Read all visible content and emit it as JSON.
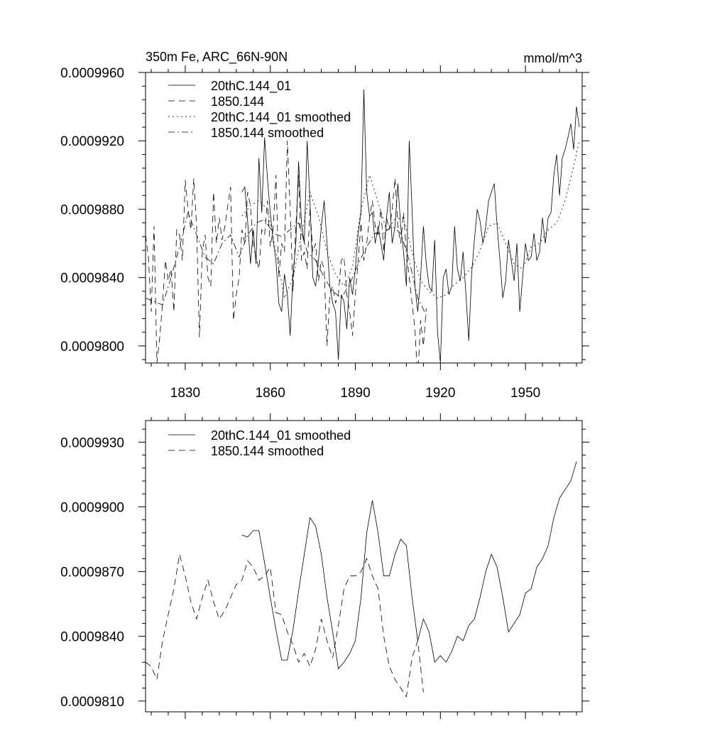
{
  "chart_data": [
    {
      "type": "line",
      "title": "350m Fe, ARC_66N-90N",
      "units_label": "mmol/m^3",
      "xlabel": "",
      "ylabel": "",
      "xlim": [
        1816,
        1970
      ],
      "ylim": [
        0.000979,
        0.000996
      ],
      "x_ticks": [
        1830,
        1860,
        1890,
        1920,
        1950
      ],
      "x_tick_labels": [
        "1830",
        "1860",
        "1890",
        "1920",
        "1950"
      ],
      "y_ticks": [
        0.00098,
        0.000984,
        0.000988,
        0.000992,
        0.000996
      ],
      "y_tick_labels": [
        "0.0009800",
        "0.0009840",
        "0.0009880",
        "0.0009920",
        "0.0009960"
      ],
      "legend_position": "top-left",
      "series": [
        {
          "name": "20thC.144_01",
          "style": "solid",
          "x": [
            1850,
            1851,
            1852,
            1853,
            1854,
            1855,
            1856,
            1857,
            1858,
            1859,
            1860,
            1861,
            1862,
            1863,
            1864,
            1865,
            1866,
            1867,
            1868,
            1869,
            1870,
            1871,
            1872,
            1873,
            1874,
            1875,
            1876,
            1877,
            1878,
            1879,
            1880,
            1881,
            1882,
            1883,
            1884,
            1885,
            1886,
            1887,
            1888,
            1889,
            1890,
            1891,
            1892,
            1893,
            1894,
            1895,
            1896,
            1897,
            1898,
            1899,
            1900,
            1901,
            1902,
            1903,
            1904,
            1905,
            1906,
            1907,
            1908,
            1909,
            1910,
            1911,
            1912,
            1913,
            1914,
            1915,
            1916,
            1917,
            1918,
            1919,
            1920,
            1921,
            1922,
            1923,
            1924,
            1925,
            1926,
            1927,
            1928,
            1929,
            1930,
            1931,
            1932,
            1933,
            1934,
            1935,
            1936,
            1937,
            1938,
            1939,
            1940,
            1941,
            1942,
            1943,
            1944,
            1945,
            1946,
            1947,
            1948,
            1949,
            1950,
            1951,
            1952,
            1953,
            1954,
            1955,
            1956,
            1957,
            1958,
            1959,
            1960,
            1961,
            1962,
            1963,
            1964,
            1965,
            1966,
            1967,
            1968,
            1969
          ],
          "values": [
            0.000989,
            0.0009893,
            0.0009873,
            0.0009848,
            0.0009868,
            0.0009848,
            0.000991,
            0.0009878,
            0.0009922,
            0.0009898,
            0.0009878,
            0.0009862,
            0.000985,
            0.0009825,
            0.000982,
            0.0009842,
            0.000983,
            0.0009806,
            0.0009842,
            0.000986,
            0.0009908,
            0.0009872,
            0.000986,
            0.000992,
            0.0009885,
            0.000984,
            0.0009835,
            0.000985,
            0.000987,
            0.0009885,
            0.000986,
            0.0009835,
            0.0009825,
            0.000982,
            0.0009792,
            0.000983,
            0.0009826,
            0.000981,
            0.000984,
            0.000983,
            0.0009845,
            0.0009866,
            0.0009878,
            0.000995,
            0.000989,
            0.0009876,
            0.0009878,
            0.000986,
            0.000987,
            0.000986,
            0.000985,
            0.0009875,
            0.000989,
            0.000986,
            0.000987,
            0.0009895,
            0.000987,
            0.0009855,
            0.0009835,
            0.000992,
            0.000988,
            0.0009835,
            0.000982,
            0.000984,
            0.000987,
            0.0009848,
            0.0009835,
            0.0009832,
            0.0009862,
            0.0009808,
            0.000979,
            0.000984,
            0.0009845,
            0.000983,
            0.0009835,
            0.000987,
            0.0009845,
            0.0009838,
            0.0009855,
            0.000983,
            0.0009803,
            0.0009842,
            0.0009862,
            0.000988,
            0.0009873,
            0.000986,
            0.000987,
            0.0009885,
            0.000989,
            0.0009895,
            0.000987,
            0.000985,
            0.0009828,
            0.0009838,
            0.0009862,
            0.000985,
            0.0009838,
            0.000986,
            0.000982,
            0.000984,
            0.000986,
            0.000985,
            0.0009852,
            0.0009866,
            0.000985,
            0.0009855,
            0.0009875,
            0.000986,
            0.0009875,
            0.0009878,
            0.00099,
            0.0009912,
            0.0009888,
            0.000991,
            0.0009915,
            0.0009922,
            0.000993,
            0.0009915,
            0.000994,
            0.0009928
          ]
        },
        {
          "name": "1850.144",
          "style": "dashed",
          "x": [
            1816,
            1817,
            1818,
            1819,
            1820,
            1821,
            1822,
            1823,
            1824,
            1825,
            1826,
            1827,
            1828,
            1829,
            1830,
            1831,
            1832,
            1833,
            1834,
            1835,
            1836,
            1837,
            1838,
            1839,
            1840,
            1841,
            1842,
            1843,
            1844,
            1845,
            1846,
            1847,
            1848,
            1849,
            1850,
            1851,
            1852,
            1853,
            1854,
            1855,
            1856,
            1857,
            1858,
            1859,
            1860,
            1861,
            1862,
            1863,
            1864,
            1865,
            1866,
            1867,
            1868,
            1869,
            1870,
            1871,
            1872,
            1873,
            1874,
            1875,
            1876,
            1877,
            1878,
            1879,
            1880,
            1881,
            1882,
            1883,
            1884,
            1885,
            1886,
            1887,
            1888,
            1889,
            1890,
            1891,
            1892,
            1893,
            1894,
            1895,
            1896,
            1897,
            1898,
            1899,
            1900,
            1901,
            1902,
            1903,
            1904,
            1905,
            1906,
            1907,
            1908,
            1909,
            1910,
            1911,
            1912,
            1913,
            1914,
            1915
          ],
          "values": [
            0.0009865,
            0.0009852,
            0.000982,
            0.000987,
            0.000979,
            0.0009805,
            0.0009825,
            0.000985,
            0.0009838,
            0.0009845,
            0.000982,
            0.0009868,
            0.0009865,
            0.000985,
            0.0009897,
            0.000988,
            0.0009868,
            0.0009898,
            0.000987,
            0.0009805,
            0.0009855,
            0.0009865,
            0.000984,
            0.0009835,
            0.000989,
            0.000986,
            0.0009875,
            0.0009862,
            0.000987,
            0.0009882,
            0.0009893,
            0.0009815,
            0.000983,
            0.000984,
            0.0009868,
            0.000986,
            0.000989,
            0.0009882,
            0.0009858,
            0.0009852,
            0.0009845,
            0.0009868,
            0.0009865,
            0.0009885,
            0.0009858,
            0.0009868,
            0.00099,
            0.000984,
            0.000986,
            0.0009855,
            0.000992,
            0.000988,
            0.0009832,
            0.000987,
            0.00099,
            0.000985,
            0.0009855,
            0.0009845,
            0.000988,
            0.0009855,
            0.000986,
            0.0009838,
            0.000985,
            0.0009845,
            0.00098,
            0.000983,
            0.0009835,
            0.0009825,
            0.000983,
            0.000985,
            0.0009852,
            0.000983,
            0.000982,
            0.0009806,
            0.000983,
            0.000985,
            0.0009872,
            0.000985,
            0.000986,
            0.0009875,
            0.0009885,
            0.000987,
            0.0009865,
            0.000988,
            0.0009855,
            0.0009875,
            0.0009868,
            0.000988,
            0.0009898,
            0.000987,
            0.000986,
            0.0009878,
            0.0009855,
            0.000984,
            0.0009825,
            0.000981,
            0.000978,
            0.0009815,
            0.00098,
            0.0009822
          ]
        },
        {
          "name": "20thC.144_01 smoothed",
          "style": "dotted",
          "x": [
            1850,
            1853,
            1856,
            1859,
            1862,
            1865,
            1868,
            1871,
            1874,
            1877,
            1880,
            1883,
            1886,
            1889,
            1892,
            1895,
            1898,
            1901,
            1904,
            1907,
            1910,
            1913,
            1916,
            1919,
            1922,
            1925,
            1928,
            1931,
            1934,
            1937,
            1940,
            1943,
            1946,
            1949,
            1952,
            1955,
            1958,
            1961,
            1964,
            1967,
            1969
          ],
          "values": [
            0.0009876,
            0.0009882,
            0.0009885,
            0.000988,
            0.0009855,
            0.0009828,
            0.000984,
            0.0009865,
            0.000989,
            0.0009876,
            0.0009855,
            0.0009842,
            0.0009835,
            0.0009846,
            0.000988,
            0.00099,
            0.0009884,
            0.0009868,
            0.0009874,
            0.0009875,
            0.0009855,
            0.0009838,
            0.0009832,
            0.0009828,
            0.000983,
            0.0009836,
            0.000984,
            0.0009846,
            0.0009856,
            0.000987,
            0.0009872,
            0.000986,
            0.0009848,
            0.0009845,
            0.0009858,
            0.000986,
            0.0009868,
            0.0009872,
            0.0009885,
            0.0009905,
            0.000992
          ]
        },
        {
          "name": "1850.144 smoothed",
          "style": "dashdot",
          "x": [
            1816,
            1819,
            1822,
            1825,
            1828,
            1831,
            1834,
            1837,
            1840,
            1843,
            1846,
            1849,
            1852,
            1855,
            1858,
            1861,
            1864,
            1867,
            1870,
            1873,
            1876,
            1879,
            1882,
            1885,
            1888,
            1891,
            1894,
            1897,
            1900,
            1903,
            1906,
            1909,
            1912,
            1915
          ],
          "values": [
            0.0009828,
            0.0009826,
            0.0009824,
            0.000984,
            0.0009858,
            0.0009878,
            0.0009865,
            0.0009852,
            0.0009848,
            0.000986,
            0.0009865,
            0.0009852,
            0.0009865,
            0.0009872,
            0.0009874,
            0.0009866,
            0.0009864,
            0.0009868,
            0.0009872,
            0.0009855,
            0.000985,
            0.000984,
            0.0009832,
            0.0009828,
            0.0009836,
            0.0009848,
            0.0009858,
            0.0009866,
            0.0009866,
            0.000987,
            0.0009866,
            0.000985,
            0.0009828,
            0.0009818
          ]
        }
      ]
    },
    {
      "type": "line",
      "title": "",
      "xlabel": "",
      "ylabel": "",
      "xlim": [
        1816,
        1970
      ],
      "ylim": [
        0.0009805,
        0.000994
      ],
      "x_ticks": [
        1830,
        1860,
        1890,
        1920,
        1950
      ],
      "x_tick_labels": [],
      "y_ticks": [
        0.000981,
        0.000984,
        0.000987,
        0.00099,
        0.000993
      ],
      "y_tick_labels": [
        "0.0009810",
        "0.0009840",
        "0.0009870",
        "0.0009900",
        "0.0009930"
      ],
      "legend_position": "top-left",
      "series": [
        {
          "name": "20thC.144_01 smoothed",
          "style": "solid",
          "x": [
            1850,
            1852,
            1854,
            1856,
            1858,
            1860,
            1862,
            1864,
            1866,
            1868,
            1870,
            1872,
            1874,
            1876,
            1878,
            1880,
            1882,
            1884,
            1886,
            1888,
            1890,
            1892,
            1894,
            1896,
            1898,
            1900,
            1902,
            1904,
            1906,
            1908,
            1910,
            1912,
            1914,
            1916,
            1918,
            1920,
            1922,
            1924,
            1926,
            1928,
            1930,
            1932,
            1934,
            1936,
            1938,
            1940,
            1942,
            1944,
            1946,
            1948,
            1950,
            1952,
            1954,
            1956,
            1958,
            1960,
            1962,
            1964,
            1966,
            1968
          ],
          "values": [
            0.0009887,
            0.0009886,
            0.0009889,
            0.0009889,
            0.0009874,
            0.0009858,
            0.0009843,
            0.0009829,
            0.0009829,
            0.0009843,
            0.0009861,
            0.0009878,
            0.0009895,
            0.0009891,
            0.0009878,
            0.0009858,
            0.0009842,
            0.0009825,
            0.0009828,
            0.0009832,
            0.0009838,
            0.0009858,
            0.0009888,
            0.0009903,
            0.0009888,
            0.0009868,
            0.0009868,
            0.0009878,
            0.0009885,
            0.0009882,
            0.0009858,
            0.0009838,
            0.0009848,
            0.0009842,
            0.0009828,
            0.0009831,
            0.0009828,
            0.0009833,
            0.000984,
            0.0009838,
            0.0009845,
            0.0009848,
            0.0009858,
            0.000987,
            0.0009878,
            0.0009872,
            0.0009858,
            0.0009842,
            0.0009846,
            0.000985,
            0.000986,
            0.0009862,
            0.0009872,
            0.0009876,
            0.0009882,
            0.0009895,
            0.0009904,
            0.0009908,
            0.0009912,
            0.0009921
          ]
        },
        {
          "name": "1850.144 smoothed",
          "style": "dashed",
          "x": [
            1816,
            1818,
            1820,
            1822,
            1824,
            1826,
            1828,
            1830,
            1832,
            1834,
            1836,
            1838,
            1840,
            1842,
            1844,
            1846,
            1848,
            1850,
            1852,
            1854,
            1856,
            1858,
            1860,
            1862,
            1864,
            1866,
            1868,
            1870,
            1872,
            1874,
            1876,
            1878,
            1880,
            1882,
            1884,
            1886,
            1888,
            1890,
            1892,
            1894,
            1896,
            1898,
            1900,
            1902,
            1904,
            1906,
            1908,
            1910,
            1912,
            1914
          ],
          "values": [
            0.0009828,
            0.0009826,
            0.000982,
            0.0009838,
            0.000985,
            0.0009862,
            0.0009878,
            0.0009868,
            0.0009856,
            0.0009848,
            0.0009858,
            0.0009866,
            0.0009856,
            0.0009848,
            0.0009852,
            0.0009858,
            0.0009864,
            0.0009866,
            0.0009875,
            0.0009872,
            0.0009866,
            0.0009868,
            0.0009872,
            0.0009851,
            0.000985,
            0.0009842,
            0.0009836,
            0.0009828,
            0.0009832,
            0.0009826,
            0.0009834,
            0.0009848,
            0.0009838,
            0.000983,
            0.0009845,
            0.0009862,
            0.0009868,
            0.0009868,
            0.000987,
            0.0009876,
            0.0009868,
            0.0009862,
            0.000984,
            0.0009826,
            0.000982,
            0.0009816,
            0.0009812,
            0.000983,
            0.0009838,
            0.0009814
          ]
        }
      ]
    }
  ]
}
